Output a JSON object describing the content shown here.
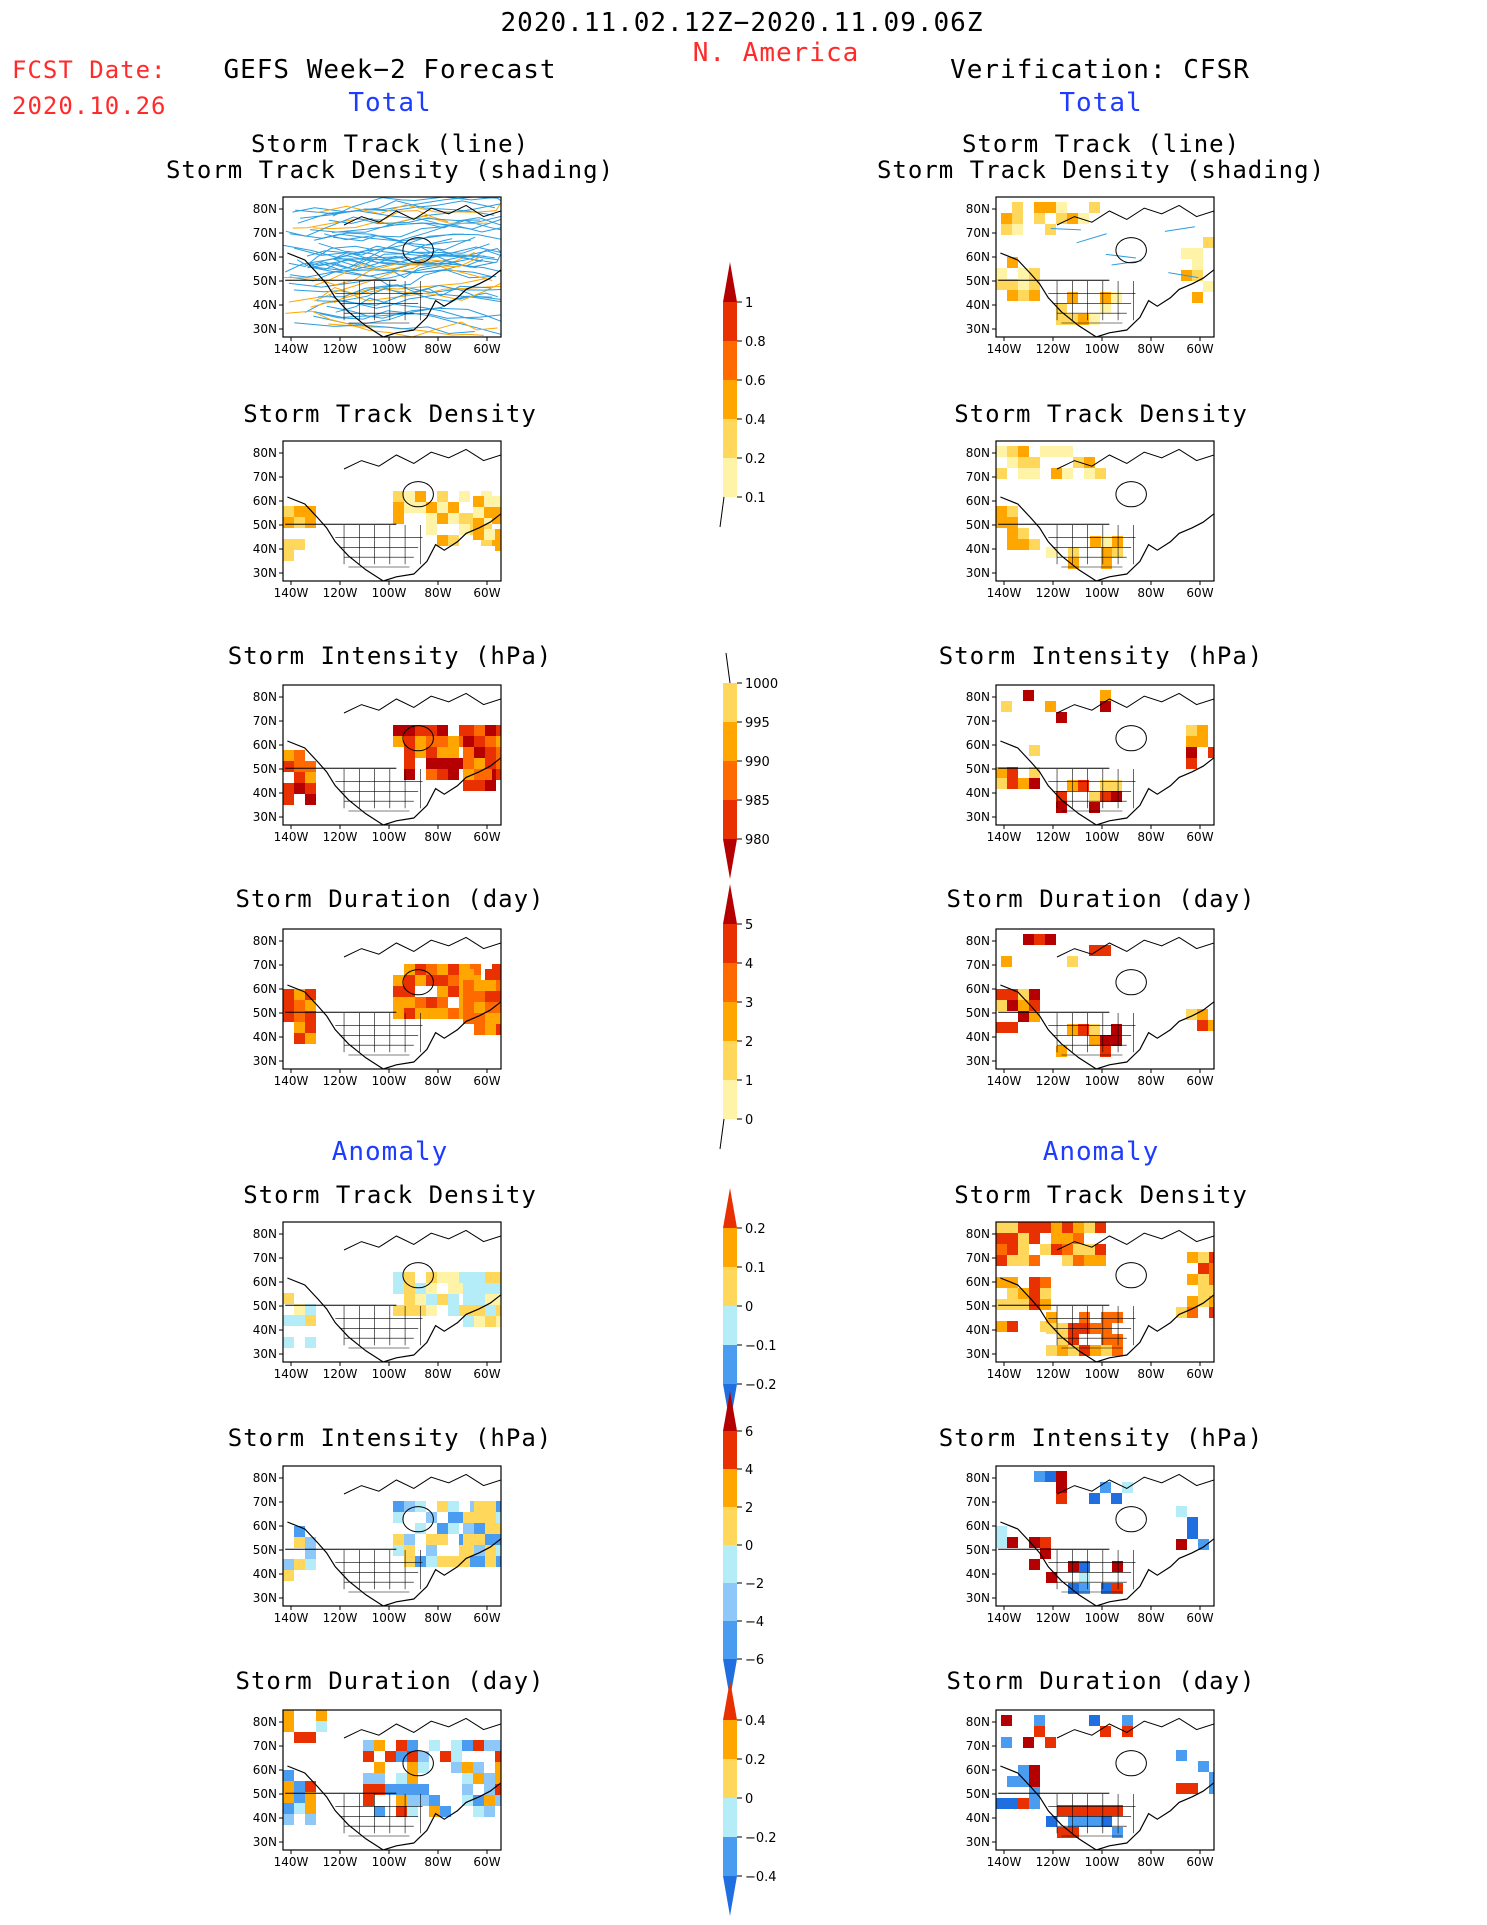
{
  "header": {
    "period": "2020.11.02.12Z−2020.11.09.06Z",
    "region": "N. America",
    "fcst_label": "FCST Date:",
    "fcst_date": "2020.10.26",
    "left_title": "GEFS Week−2 Forecast",
    "right_title": "Verification: CFSR",
    "total_label": "Total",
    "anomaly_label": "Anomaly"
  },
  "colors": {
    "title_red": "#ff2a2a",
    "section_blue": "#1e3cff",
    "track_blue": "#2a9de0",
    "scale_light_yellow": "#fff3a8",
    "scale_yellow": "#ffd75a",
    "scale_orange": "#ffa600",
    "scale_dark_orange": "#ff6a00",
    "scale_red": "#e83000",
    "scale_dark_red": "#b40000",
    "scale_light_blue": "#b4ecf8",
    "scale_mid_blue": "#8ec8f8",
    "scale_blue": "#4a9cf0",
    "scale_dark_blue": "#1f6fe0"
  },
  "map_axes": {
    "lat_ticks": [
      "80N",
      "70N",
      "60N",
      "50N",
      "40N",
      "30N"
    ],
    "lon_ticks": [
      "140W",
      "120W",
      "100W",
      "80W",
      "60W"
    ]
  },
  "panels": {
    "track": {
      "title1": "Storm Track (line)",
      "title2": "Storm Track Density (shading)"
    },
    "density": {
      "title": "Storm Track Density"
    },
    "intensity": {
      "title": "Storm Intensity (hPa)"
    },
    "duration": {
      "title": "Storm Duration (day)"
    }
  },
  "colorbars": {
    "density_total": [
      "1",
      "0.8",
      "0.6",
      "0.4",
      "0.2",
      "0.1"
    ],
    "intensity_total": [
      "1000",
      "995",
      "990",
      "985",
      "980"
    ],
    "duration_total": [
      "5",
      "4",
      "3",
      "2",
      "1",
      "0"
    ],
    "density_anom": [
      "0.2",
      "0.1",
      "0",
      "−0.1",
      "−0.2"
    ],
    "intensity_anom": [
      "6",
      "4",
      "2",
      "0",
      "−2",
      "−4",
      "−6"
    ],
    "duration_anom": [
      "0.4",
      "0.2",
      "0",
      "−0.2",
      "−0.4"
    ]
  }
}
